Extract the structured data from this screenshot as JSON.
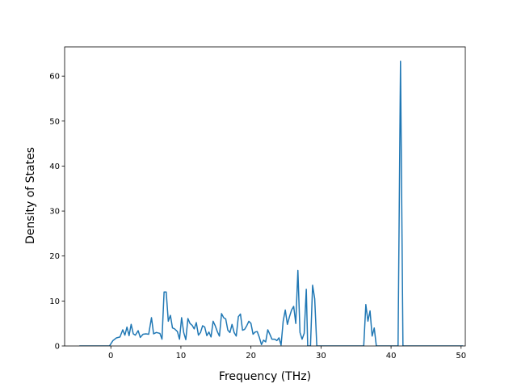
{
  "chart_data": {
    "type": "line",
    "xlabel": "Frequency (THz)",
    "ylabel": "Density of States",
    "xlim": [
      -6.6,
      50.6
    ],
    "ylim": [
      0,
      66.5
    ],
    "x_ticks": [
      0,
      10,
      20,
      30,
      40,
      50
    ],
    "y_ticks": [
      0,
      10,
      20,
      30,
      40,
      50,
      60
    ],
    "grid": false,
    "line_color": "#1f77b4",
    "series": [
      {
        "points": [
          [
            -4.5,
            0
          ],
          [
            -0.2,
            0
          ],
          [
            0.3,
            1.2
          ],
          [
            0.8,
            1.8
          ],
          [
            1.3,
            2.0
          ],
          [
            1.7,
            3.6
          ],
          [
            2.0,
            2.4
          ],
          [
            2.3,
            4.2
          ],
          [
            2.6,
            2.3
          ],
          [
            2.9,
            4.8
          ],
          [
            3.2,
            2.7
          ],
          [
            3.5,
            2.4
          ],
          [
            3.9,
            3.4
          ],
          [
            4.2,
            1.9
          ],
          [
            4.6,
            2.6
          ],
          [
            5.0,
            2.7
          ],
          [
            5.4,
            2.6
          ],
          [
            5.8,
            6.3
          ],
          [
            6.1,
            2.7
          ],
          [
            6.5,
            3.0
          ],
          [
            7.0,
            2.8
          ],
          [
            7.3,
            1.5
          ],
          [
            7.6,
            12.0
          ],
          [
            7.9,
            12.0
          ],
          [
            8.2,
            5.5
          ],
          [
            8.5,
            6.8
          ],
          [
            8.8,
            4.0
          ],
          [
            9.1,
            3.8
          ],
          [
            9.5,
            3.2
          ],
          [
            9.8,
            1.5
          ],
          [
            10.1,
            6.3
          ],
          [
            10.4,
            3.0
          ],
          [
            10.7,
            1.4
          ],
          [
            11.0,
            6.1
          ],
          [
            11.3,
            5.0
          ],
          [
            11.6,
            4.6
          ],
          [
            11.9,
            3.8
          ],
          [
            12.2,
            5.2
          ],
          [
            12.5,
            2.4
          ],
          [
            12.8,
            3.0
          ],
          [
            13.1,
            4.5
          ],
          [
            13.4,
            4.2
          ],
          [
            13.7,
            2.3
          ],
          [
            14.0,
            3.1
          ],
          [
            14.3,
            2.0
          ],
          [
            14.6,
            5.5
          ],
          [
            14.9,
            4.5
          ],
          [
            15.2,
            3.2
          ],
          [
            15.5,
            2.2
          ],
          [
            15.8,
            7.2
          ],
          [
            16.1,
            6.3
          ],
          [
            16.4,
            6.0
          ],
          [
            16.7,
            3.5
          ],
          [
            17.0,
            3.0
          ],
          [
            17.3,
            4.8
          ],
          [
            17.6,
            3.0
          ],
          [
            17.9,
            2.2
          ],
          [
            18.2,
            6.5
          ],
          [
            18.5,
            7.1
          ],
          [
            18.8,
            3.5
          ],
          [
            19.1,
            3.7
          ],
          [
            19.4,
            4.5
          ],
          [
            19.7,
            5.5
          ],
          [
            20.0,
            5.0
          ],
          [
            20.3,
            2.6
          ],
          [
            20.6,
            3.1
          ],
          [
            20.9,
            3.2
          ],
          [
            21.2,
            1.9
          ],
          [
            21.5,
            0.3
          ],
          [
            21.8,
            1.3
          ],
          [
            22.1,
            0.9
          ],
          [
            22.4,
            3.6
          ],
          [
            22.7,
            2.6
          ],
          [
            23.0,
            1.5
          ],
          [
            23.4,
            1.5
          ],
          [
            23.7,
            1.2
          ],
          [
            24.0,
            1.8
          ],
          [
            24.3,
            0.2
          ],
          [
            24.6,
            5.5
          ],
          [
            24.9,
            8.0
          ],
          [
            25.2,
            4.8
          ],
          [
            25.5,
            6.5
          ],
          [
            25.8,
            8.0
          ],
          [
            26.1,
            8.8
          ],
          [
            26.4,
            5.0
          ],
          [
            26.7,
            16.8
          ],
          [
            27.0,
            3.0
          ],
          [
            27.3,
            1.5
          ],
          [
            27.6,
            2.8
          ],
          [
            27.9,
            12.6
          ],
          [
            28.1,
            0
          ],
          [
            28.5,
            0
          ],
          [
            28.8,
            13.5
          ],
          [
            29.1,
            10.5
          ],
          [
            29.4,
            0
          ],
          [
            36.1,
            0
          ],
          [
            36.4,
            9.2
          ],
          [
            36.7,
            5.5
          ],
          [
            37.0,
            7.8
          ],
          [
            37.3,
            2.2
          ],
          [
            37.6,
            4.0
          ],
          [
            37.9,
            0
          ],
          [
            41.0,
            0
          ],
          [
            41.35,
            63.3
          ],
          [
            41.7,
            0
          ],
          [
            50.3,
            0
          ]
        ]
      }
    ]
  }
}
